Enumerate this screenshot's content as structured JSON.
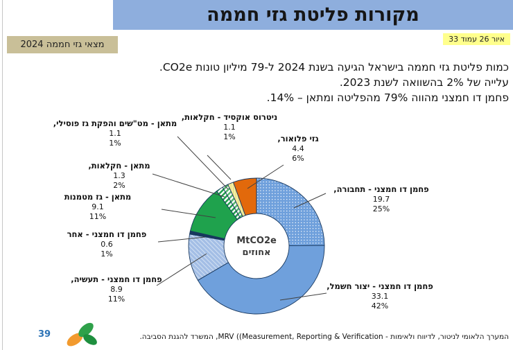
{
  "page": {
    "title": "מקורות פליטת גזי חממה"
  },
  "header": {
    "inventory_label": "מצאי גזי חממה 2024",
    "figure_ref": "איור 26 עמוד 33"
  },
  "intro": {
    "lines": [
      "כמות פליטת גזי חממה בישראל הגיעה בשנת 2024 ל-79 מיליון טונות CO2e.",
      "עלייה של 2% בהשוואה לשנת 2023.",
      "פחמן דו חמצני מהווה 79% מהפליטה ומתאן – 14%."
    ]
  },
  "chart_data": {
    "type": "donut",
    "title": "מקורות פליטת גזי חממה",
    "units": "MtCO2e",
    "center_label_line1": "MtCO2e",
    "center_label_line2": "אחוזים",
    "start_angle_deg": 0,
    "direction": "clockwise",
    "slices": [
      {
        "label": "פחמן דו חמצני - תחבורה,",
        "value": 19.7,
        "pct": "25%",
        "color": "#6FA0DC",
        "color2": "#FFFFFF",
        "pattern": "dots"
      },
      {
        "label": "פחמן דו חמצני - יצור חשמל,",
        "value": 33.1,
        "pct": "42%",
        "color": "#6FA0DC",
        "color2": "",
        "pattern": "solid"
      },
      {
        "label": "פחמן דו חמצני - תעשיה,",
        "value": 8.9,
        "pct": "11%",
        "color": "#A3BEE5",
        "color2": "#FFFFFF",
        "pattern": "thin-stripes"
      },
      {
        "label": "פחמן דו חמצני - אחר",
        "value": 0.6,
        "pct": "1%",
        "color": "#17375E",
        "color2": "",
        "pattern": "solid"
      },
      {
        "label": "מתאן - גז מטמנות",
        "value": 9.1,
        "pct": "11%",
        "color": "#1FA24D",
        "color2": "",
        "pattern": "solid"
      },
      {
        "label": "מתאן - חקלאות,",
        "value": 1.3,
        "pct": "2%",
        "color": "#1FA24D",
        "color2": "#FFFFFF",
        "pattern": "diag-stripes"
      },
      {
        "label": "מתאן - מט\"שים והפקת גז פוסילי,",
        "value": 1.1,
        "pct": "1%",
        "color": "#55B96E",
        "color2": "#FFFFFF",
        "pattern": "diag-stripes"
      },
      {
        "label": "ניטרוס אוקסיד - חקלאות,",
        "value": 1.1,
        "pct": "1%",
        "color": "#F6F1A8",
        "color2": "#E4DC7E",
        "pattern": "vert-stripes"
      },
      {
        "label": "גזי פלואור,",
        "value": 4.4,
        "pct": "6%",
        "color": "#E2690B",
        "color2": "",
        "pattern": "solid"
      }
    ]
  },
  "footer": {
    "page_number": "39",
    "credit": "המערך הלאומי לניטור, לדיווח ולאימות - MRV ((Measurement, Reporting & Verification, המשרד להגנת הסביבה."
  },
  "theme": {
    "banner_bg": "#8EAEDD",
    "inventory_bg": "#C9BF98",
    "figure_tag_bg": "#FFFF8C",
    "page_number_color": "#2E74B6",
    "slice_border": "#17375E",
    "callout_line": "#404040"
  }
}
